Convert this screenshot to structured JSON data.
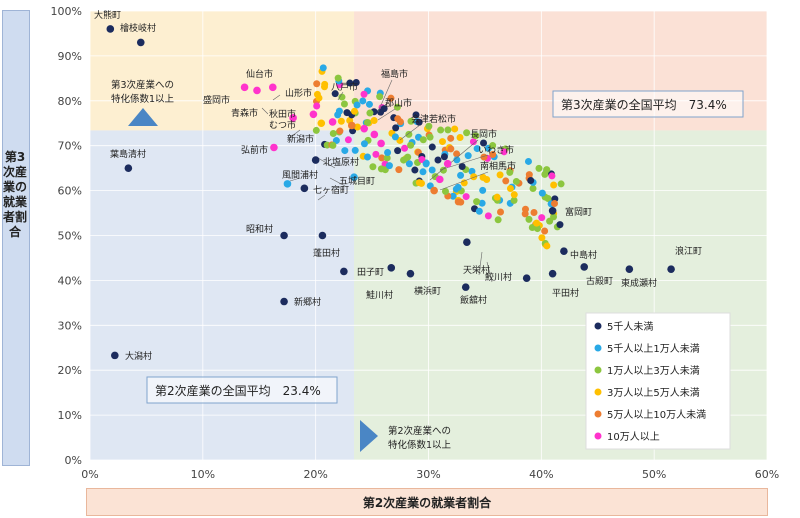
{
  "chart_data": {
    "type": "scatter",
    "xlabel": "第2次産業の就業者割合",
    "ylabel": "第3次産業の就業者割合",
    "xlim": [
      0,
      60
    ],
    "ylim": [
      0,
      100
    ],
    "x_ticks": [
      "0%",
      "10%",
      "20%",
      "30%",
      "40%",
      "50%",
      "60%"
    ],
    "y_ticks": [
      "0%",
      "10%",
      "20%",
      "30%",
      "40%",
      "50%",
      "60%",
      "70%",
      "80%",
      "90%",
      "100%"
    ],
    "avg_secondary": 23.4,
    "avg_tertiary": 73.4,
    "avg_tertiary_label": "第3次産業の全国平均　73.4%",
    "avg_secondary_label": "第2次産業の全国平均　23.4%",
    "annotation_tertiary": [
      "第3次産業への",
      "特化係数1以上"
    ],
    "annotation_secondary": [
      "第2次産業への",
      "特化係数1以上"
    ],
    "legend_position": "bottom-right",
    "series": [
      {
        "name": "5千人未満",
        "color": "#1c2c5e"
      },
      {
        "name": "5千人以上1万人未満",
        "color": "#29a9e6"
      },
      {
        "name": "1万人以上3万人未満",
        "color": "#8cc63f"
      },
      {
        "name": "3万人以上5万人未満",
        "color": "#ffc000"
      },
      {
        "name": "5万人以上10万人未満",
        "color": "#ed7d31"
      },
      {
        "name": "10万人以上",
        "color": "#ff33cc"
      }
    ],
    "labeled_points": [
      {
        "name": "大熊町",
        "x": 1.8,
        "y": 96.0,
        "series": 0
      },
      {
        "name": "檜枝岐村",
        "x": 4.5,
        "y": 93.0,
        "series": 0
      },
      {
        "name": "葉島清村",
        "x": 3.4,
        "y": 65.0,
        "series": 0
      },
      {
        "name": "大潟村",
        "x": 2.2,
        "y": 23.3,
        "series": 0
      },
      {
        "name": "仙台市",
        "x": 16.2,
        "y": 83.0,
        "series": 5
      },
      {
        "name": "盛岡市",
        "x": 13.7,
        "y": 83.0,
        "series": 5
      },
      {
        "name": "青森市",
        "x": 14.8,
        "y": 82.3,
        "series": 5
      },
      {
        "name": "山形市",
        "x": 19.8,
        "y": 77.0,
        "series": 5
      },
      {
        "name": "秋田市",
        "x": 18.0,
        "y": 76.2,
        "series": 5
      },
      {
        "name": "むつ市",
        "x": 20.5,
        "y": 75.0,
        "series": 3
      },
      {
        "name": "新潟市",
        "x": 21.5,
        "y": 75.3,
        "series": 5
      },
      {
        "name": "八戸市",
        "x": 23.2,
        "y": 74.5,
        "series": 4
      },
      {
        "name": "福島市",
        "x": 24.3,
        "y": 73.8,
        "series": 5
      },
      {
        "name": "郡山市",
        "x": 25.2,
        "y": 72.5,
        "series": 5
      },
      {
        "name": "会津若松市",
        "x": 25.8,
        "y": 70.5,
        "series": 5
      },
      {
        "name": "弘前市",
        "x": 16.3,
        "y": 69.6,
        "series": 5
      },
      {
        "name": "北塩原村",
        "x": 20.0,
        "y": 66.8,
        "series": 0
      },
      {
        "name": "五城目町",
        "x": 23.4,
        "y": 63.0,
        "series": 1
      },
      {
        "name": "風間浦村",
        "x": 17.5,
        "y": 61.5,
        "series": 1
      },
      {
        "name": "七ヶ宿町",
        "x": 19.0,
        "y": 60.5,
        "series": 0
      },
      {
        "name": "長岡市",
        "x": 31.7,
        "y": 66.0,
        "series": 5
      },
      {
        "name": "いわき市",
        "x": 31.0,
        "y": 62.5,
        "series": 5
      },
      {
        "name": "南相馬市",
        "x": 30.5,
        "y": 60.0,
        "series": 4
      },
      {
        "name": "昭和村",
        "x": 17.2,
        "y": 50.0,
        "series": 0
      },
      {
        "name": "蓬田村",
        "x": 20.6,
        "y": 50.0,
        "series": 0
      },
      {
        "name": "田子町",
        "x": 22.5,
        "y": 42.0,
        "series": 0
      },
      {
        "name": "鮭川村",
        "x": 26.7,
        "y": 42.8,
        "series": 0
      },
      {
        "name": "横浜町",
        "x": 28.4,
        "y": 41.5,
        "series": 0
      },
      {
        "name": "飯舘村",
        "x": 33.3,
        "y": 38.5,
        "series": 0
      },
      {
        "name": "天栄村",
        "x": 33.4,
        "y": 48.5,
        "series": 0
      },
      {
        "name": "鮫川村",
        "x": 38.7,
        "y": 40.5,
        "series": 0
      },
      {
        "name": "新郷村",
        "x": 17.2,
        "y": 35.3,
        "series": 0
      },
      {
        "name": "富岡町",
        "x": 41.0,
        "y": 55.5,
        "series": 0
      },
      {
        "name": "中島村",
        "x": 42.0,
        "y": 46.5,
        "series": 0
      },
      {
        "name": "平田村",
        "x": 41.0,
        "y": 41.5,
        "series": 0
      },
      {
        "name": "古殿町",
        "x": 43.8,
        "y": 43.0,
        "series": 0
      },
      {
        "name": "東成瀬村",
        "x": 47.8,
        "y": 42.5,
        "series": 0
      },
      {
        "name": "浪江町",
        "x": 51.5,
        "y": 42.5,
        "series": 0
      }
    ]
  },
  "labels": {
    "oguma": "大熊町",
    "hinoemata": "檜枝岐村",
    "hashimasu": "葉島清村",
    "ogata": "大潟村",
    "sendai": "仙台市",
    "morioka": "盛岡市",
    "aomori": "青森市",
    "yamagata": "山形市",
    "akita": "秋田市",
    "mutsu": "むつ市",
    "niigata": "新潟市",
    "hachinohe": "八戸市",
    "fukushima": "福島市",
    "koriyama": "郡山市",
    "aizu": "会津若松市",
    "hirosaki": "弘前市",
    "kitashiobara": "北塩原村",
    "gojome": "五城目町",
    "kazamaura": "風間浦村",
    "shichikashuku": "七ヶ宿町",
    "nagaoka": "長岡市",
    "iwaki": "いわき市",
    "minamisoma": "南相馬市",
    "showa": "昭和村",
    "yomogita": "蓬田村",
    "takko": "田子町",
    "sakegawa": "鮭川村",
    "yokohama": "横浜町",
    "iitate": "飯舘村",
    "tenei": "天栄村",
    "samegawa": "鮫川村",
    "shingo": "新郷村",
    "tomioka": "富岡町",
    "nakajima": "中島村",
    "hirata": "平田村",
    "furudono": "古殿町",
    "higashinaruse": "東成瀬村",
    "namie": "浪江町"
  }
}
